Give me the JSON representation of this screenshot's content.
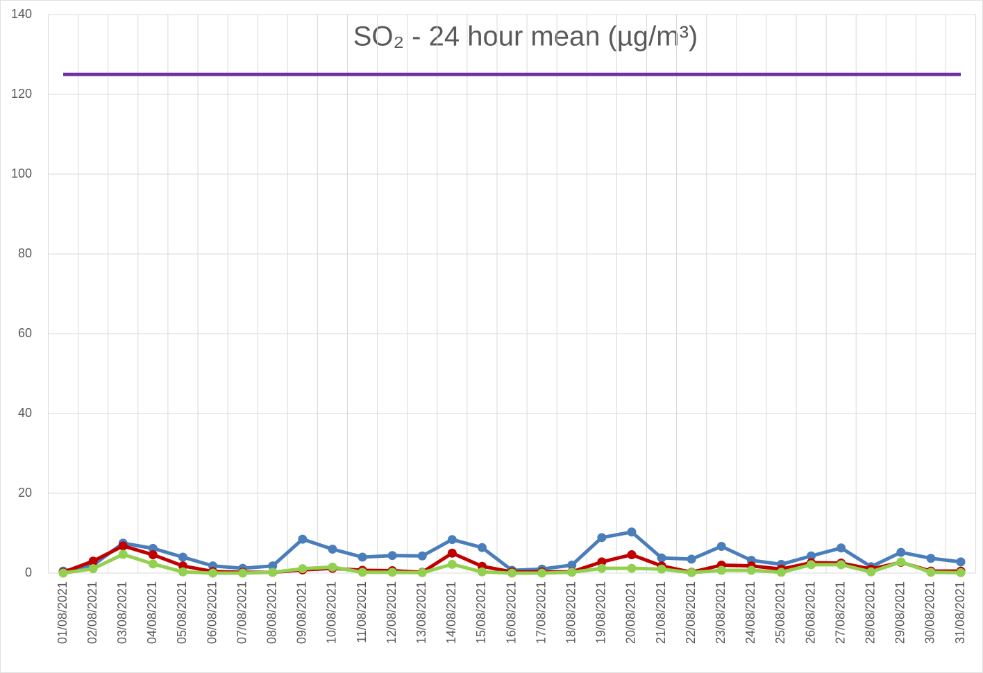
{
  "chart_data": {
    "type": "line",
    "title": "SO₂ - 24 hour mean (µg/m³)",
    "categories": [
      "01/08/2021",
      "02/08/2021",
      "03/08/2021",
      "04/08/2021",
      "05/08/2021",
      "06/08/2021",
      "07/08/2021",
      "08/08/2021",
      "09/08/2021",
      "10/08/2021",
      "11/08/2021",
      "12/08/2021",
      "13/08/2021",
      "14/08/2021",
      "15/08/2021",
      "16/08/2021",
      "17/08/2021",
      "18/08/2021",
      "19/08/2021",
      "20/08/2021",
      "21/08/2021",
      "22/08/2021",
      "23/08/2021",
      "24/08/2021",
      "25/08/2021",
      "26/08/2021",
      "27/08/2021",
      "28/08/2021",
      "29/08/2021",
      "30/08/2021",
      "31/08/2021"
    ],
    "series": [
      {
        "color": "#4a7ebb",
        "marker": true,
        "values": [
          0.5,
          2,
          7.5,
          6.2,
          4,
          1.8,
          1.2,
          1.8,
          8.5,
          6,
          4,
          4.4,
          4.3,
          8.4,
          6.4,
          0.7,
          1,
          2,
          8.9,
          10.3,
          3.8,
          3.5,
          6.7,
          3.2,
          2.2,
          4.3,
          6.3,
          1.6,
          5.2,
          3.7,
          2.8
        ]
      },
      {
        "color": "#c00000",
        "marker": true,
        "values": [
          0.2,
          3,
          6.8,
          4.6,
          1.8,
          0.4,
          0.2,
          0.2,
          0.8,
          1.2,
          0.7,
          0.6,
          0.2,
          5,
          1.7,
          0.3,
          0.3,
          0.3,
          2.8,
          4.6,
          1.8,
          0.2,
          2,
          1.8,
          1,
          2.6,
          2.5,
          1,
          2.7,
          0.5,
          0.5
        ]
      },
      {
        "color": "#92d050",
        "marker": true,
        "values": [
          0,
          1.1,
          4.7,
          2.3,
          0.3,
          0,
          0,
          0.2,
          1.1,
          1.5,
          0.2,
          0.2,
          0.1,
          2.2,
          0.3,
          0,
          0,
          0.2,
          1.2,
          1.2,
          1,
          0.1,
          0.7,
          0.7,
          0.2,
          2.1,
          2.1,
          0.3,
          2.8,
          0.2,
          0.1
        ]
      },
      {
        "color": "#7030a0",
        "marker": false,
        "values": [
          125,
          125,
          125,
          125,
          125,
          125,
          125,
          125,
          125,
          125,
          125,
          125,
          125,
          125,
          125,
          125,
          125,
          125,
          125,
          125,
          125,
          125,
          125,
          125,
          125,
          125,
          125,
          125,
          125,
          125,
          125
        ]
      }
    ],
    "ylim": [
      0,
      140
    ],
    "yticks": [
      0,
      20,
      40,
      60,
      80,
      100,
      120,
      140
    ],
    "grid": true
  }
}
